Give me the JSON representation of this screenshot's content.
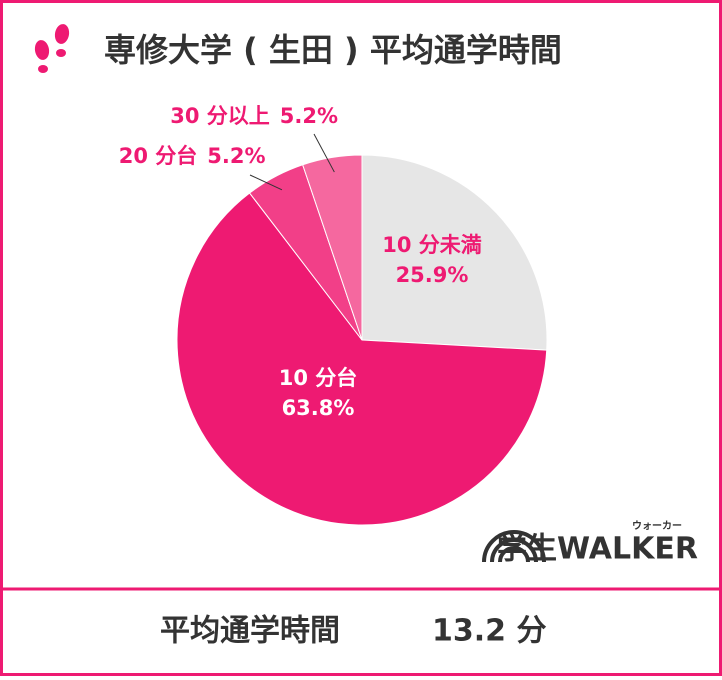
{
  "chart_data": {
    "type": "pie",
    "title": "専修大学 ( 生田 ) 平均通学時間",
    "categories": [
      "10 分未満",
      "10 分台",
      "20 分台",
      "30 分以上"
    ],
    "values": [
      25.9,
      63.8,
      5.2,
      5.2
    ],
    "value_labels": [
      "25.9%",
      "63.8%",
      "5.2%",
      "5.2%"
    ],
    "colors": [
      "#e6e6e6",
      "#ee1a72",
      "#f23f88",
      "#f5689f"
    ],
    "footer_label": "平均通学時間",
    "footer_value": "13.2 分",
    "logo_text": "学生WALKER",
    "logo_ruby": "ウォーカー"
  }
}
